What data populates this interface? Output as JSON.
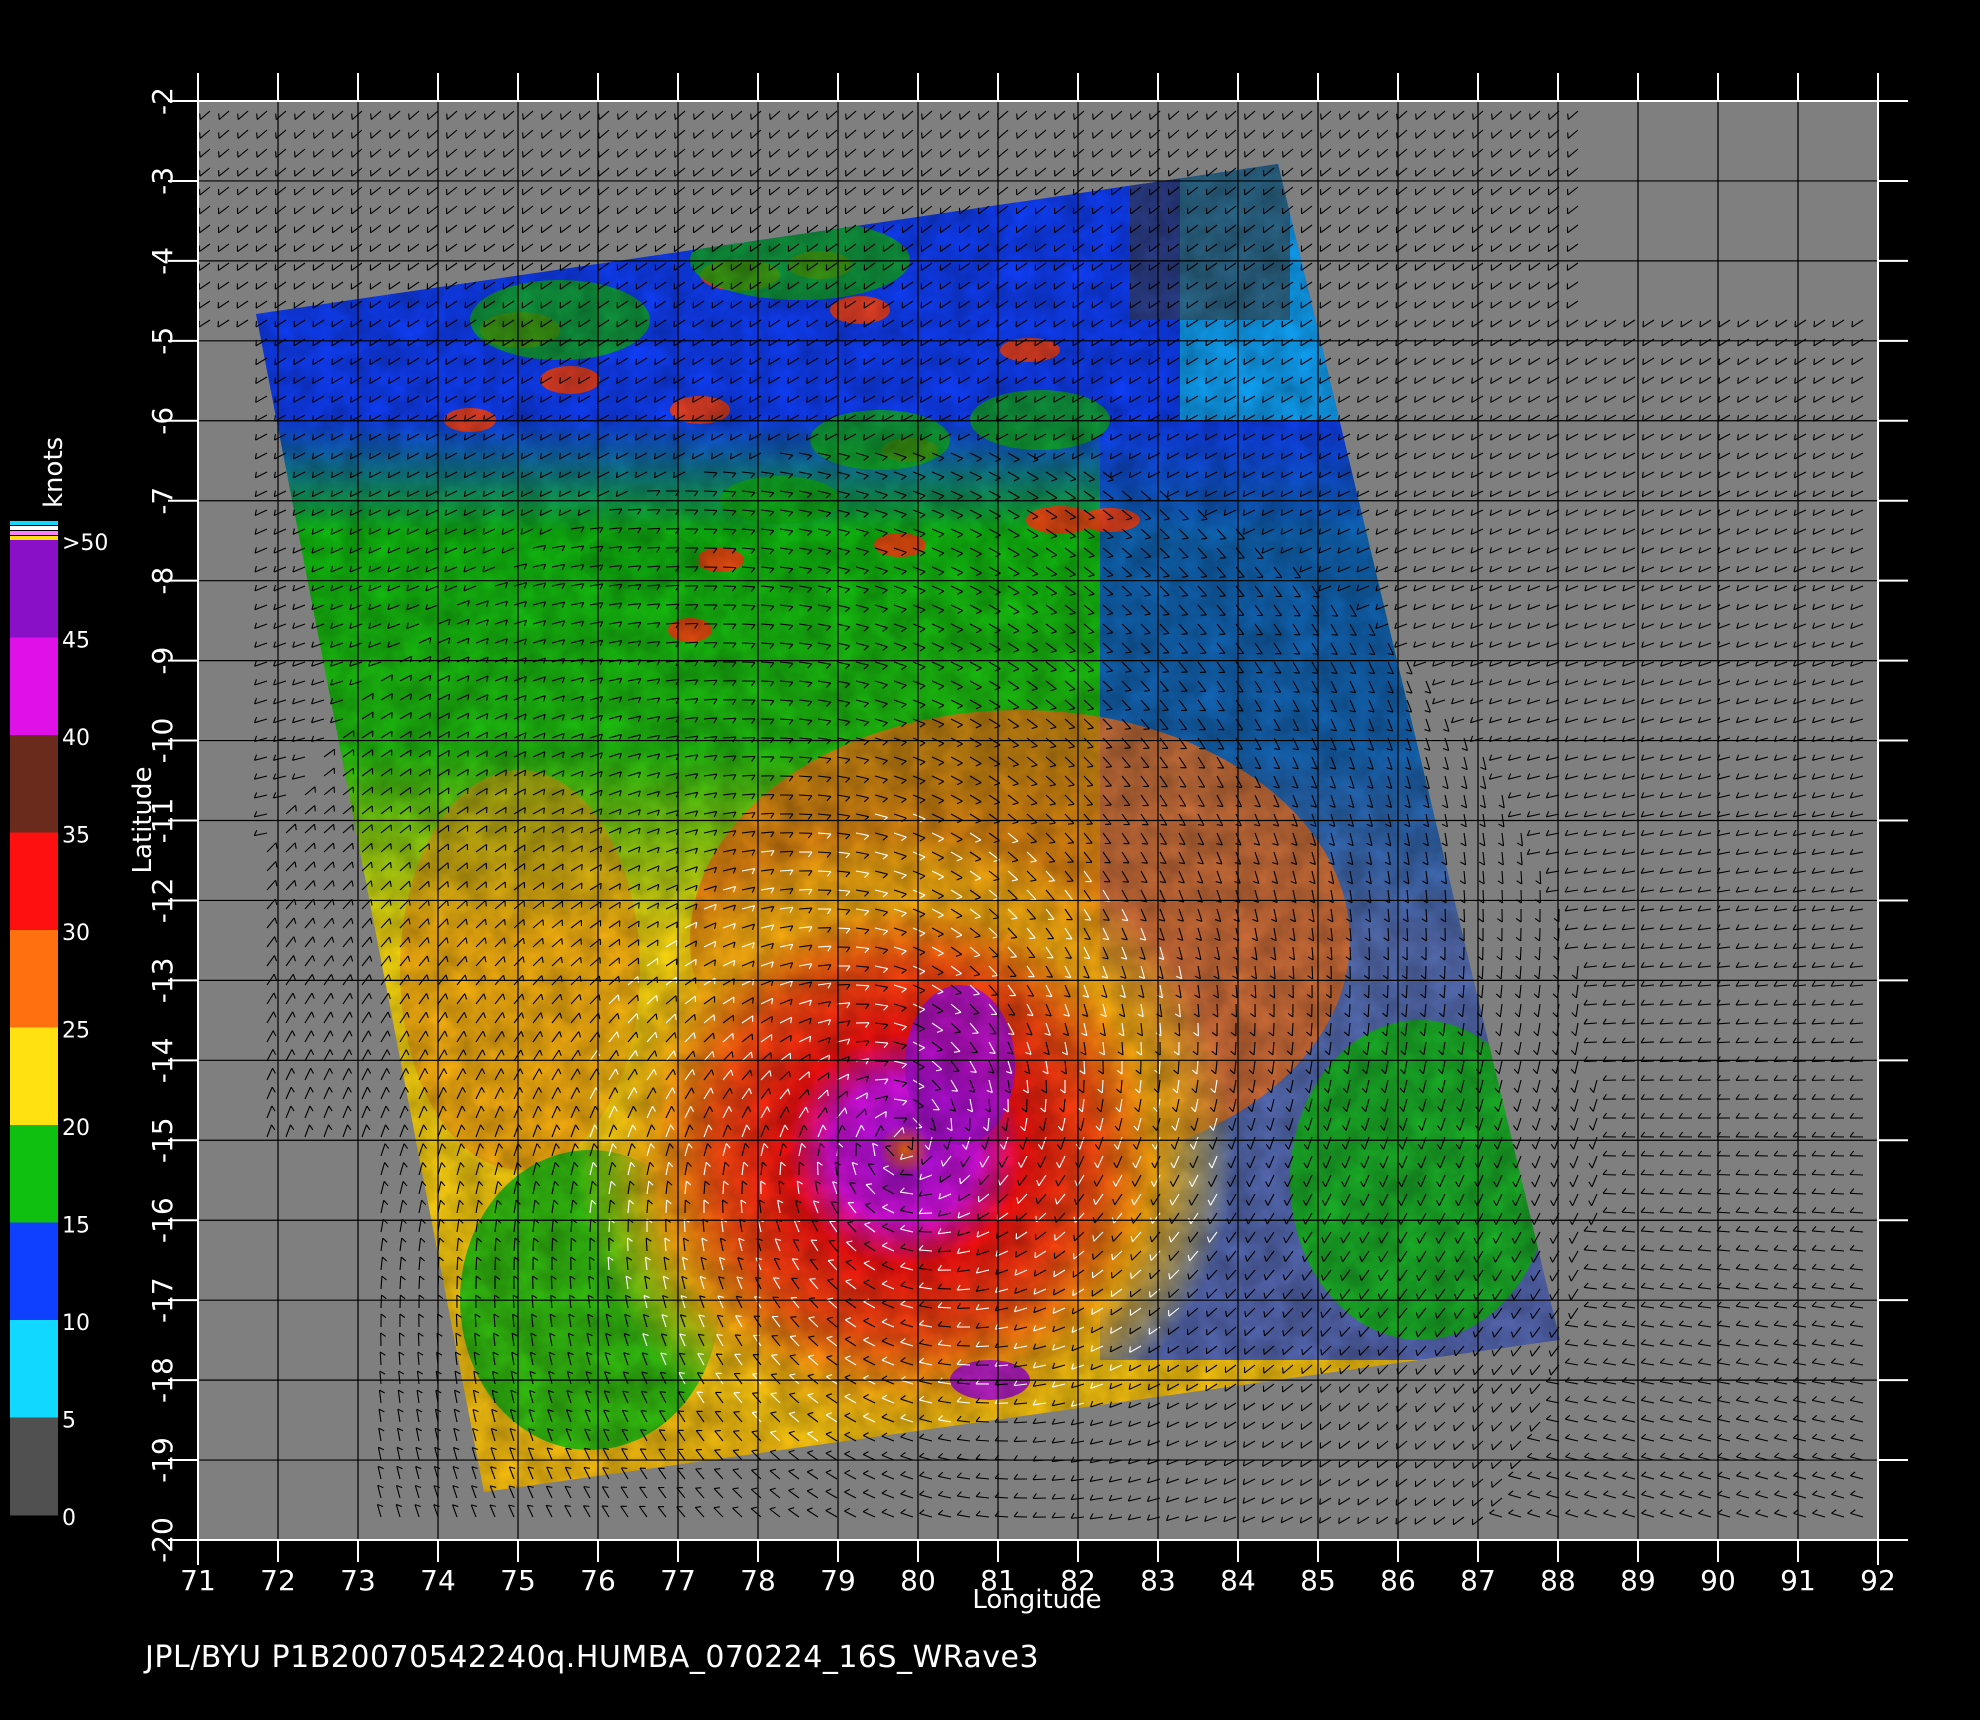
{
  "footer": "JPL/BYU  P1B20070542240q.HUMBA_070224_16S_WRave3",
  "axes": {
    "xlabel": "Longitude",
    "ylabel": "Latitude",
    "x_ticks": [
      "71",
      "72",
      "73",
      "74",
      "75",
      "76",
      "77",
      "78",
      "79",
      "80",
      "81",
      "82",
      "83",
      "84",
      "85",
      "86",
      "87",
      "88",
      "89",
      "90",
      "91",
      "92"
    ],
    "y_ticks": [
      "-2",
      "-3",
      "-4",
      "-5",
      "-6",
      "-7",
      "-8",
      "-9",
      "-10",
      "-11",
      "-12",
      "-13",
      "-14",
      "-15",
      "-16",
      "-17",
      "-18",
      "-19",
      "-20"
    ],
    "xlim": [
      71,
      92
    ],
    "ylim": [
      -20,
      -2
    ]
  },
  "colorbar": {
    "unit": "knots",
    "labels": [
      ">50",
      "45",
      "40",
      "35",
      "30",
      "25",
      "20",
      "15",
      "10",
      "5",
      "0"
    ],
    "segments": [
      {
        "from": 45,
        "to": 50,
        "color": "#8a10c8"
      },
      {
        "from": 40,
        "to": 45,
        "color": "#e010e8"
      },
      {
        "from": 35,
        "to": 40,
        "color": "#6a2a1c"
      },
      {
        "from": 30,
        "to": 35,
        "color": "#ff1010"
      },
      {
        "from": 25,
        "to": 30,
        "color": "#ff7010"
      },
      {
        "from": 20,
        "to": 25,
        "color": "#ffe010"
      },
      {
        "from": 15,
        "to": 20,
        "color": "#10c010"
      },
      {
        "from": 10,
        "to": 15,
        "color": "#1040ff"
      },
      {
        "from": 5,
        "to": 10,
        "color": "#10d8ff"
      },
      {
        "from": 0,
        "to": 5,
        "color": "#505050"
      }
    ]
  },
  "colors": {
    "background": "#000000",
    "map_background": "#7f7f7f",
    "grid": "#000000",
    "text": "#ffffff",
    "wind_barb_low": "#000000",
    "wind_barb_high": "#ffffff"
  },
  "storm": {
    "name": "HUMBA",
    "center_lon": 79.8,
    "center_lat": -15.0
  }
}
